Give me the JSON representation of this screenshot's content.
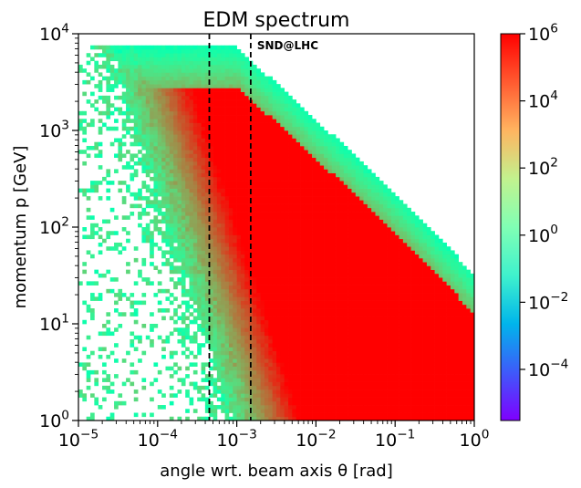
{
  "chart_data": {
    "type": "heatmap",
    "title": "EDM spectrum",
    "xlabel": "angle wrt. beam axis θ [rad]",
    "ylabel": "momentum p [GeV]",
    "x_scale": "log",
    "y_scale": "log",
    "xlim": [
      1e-05,
      1
    ],
    "ylim": [
      1,
      10000
    ],
    "x_ticks": [
      {
        "base": "10",
        "exp": "−5"
      },
      {
        "base": "10",
        "exp": "−4"
      },
      {
        "base": "10",
        "exp": "−3"
      },
      {
        "base": "10",
        "exp": "−2"
      },
      {
        "base": "10",
        "exp": "−1"
      },
      {
        "base": "10",
        "exp": "0"
      }
    ],
    "y_ticks": [
      {
        "base": "10",
        "exp": "0"
      },
      {
        "base": "10",
        "exp": "1"
      },
      {
        "base": "10",
        "exp": "2"
      },
      {
        "base": "10",
        "exp": "3"
      },
      {
        "base": "10",
        "exp": "4"
      }
    ],
    "colorbar": {
      "scale": "log",
      "colormap": "rainbow",
      "range": [
        3e-06,
        1000000
      ],
      "ticks": [
        {
          "base": "10",
          "exp": "6"
        },
        {
          "base": "10",
          "exp": "4"
        },
        {
          "base": "10",
          "exp": "2"
        },
        {
          "base": "10",
          "exp": "0"
        },
        {
          "base": "10",
          "exp": "−2"
        },
        {
          "base": "10",
          "exp": "−4"
        }
      ]
    },
    "vertical_lines": [
      {
        "x": 0.00045,
        "style": "dashed",
        "color": "#000000"
      },
      {
        "x": 0.0015,
        "style": "dashed",
        "color": "#000000",
        "label": "SND@LHC"
      }
    ],
    "grid": false,
    "legend": "none"
  }
}
